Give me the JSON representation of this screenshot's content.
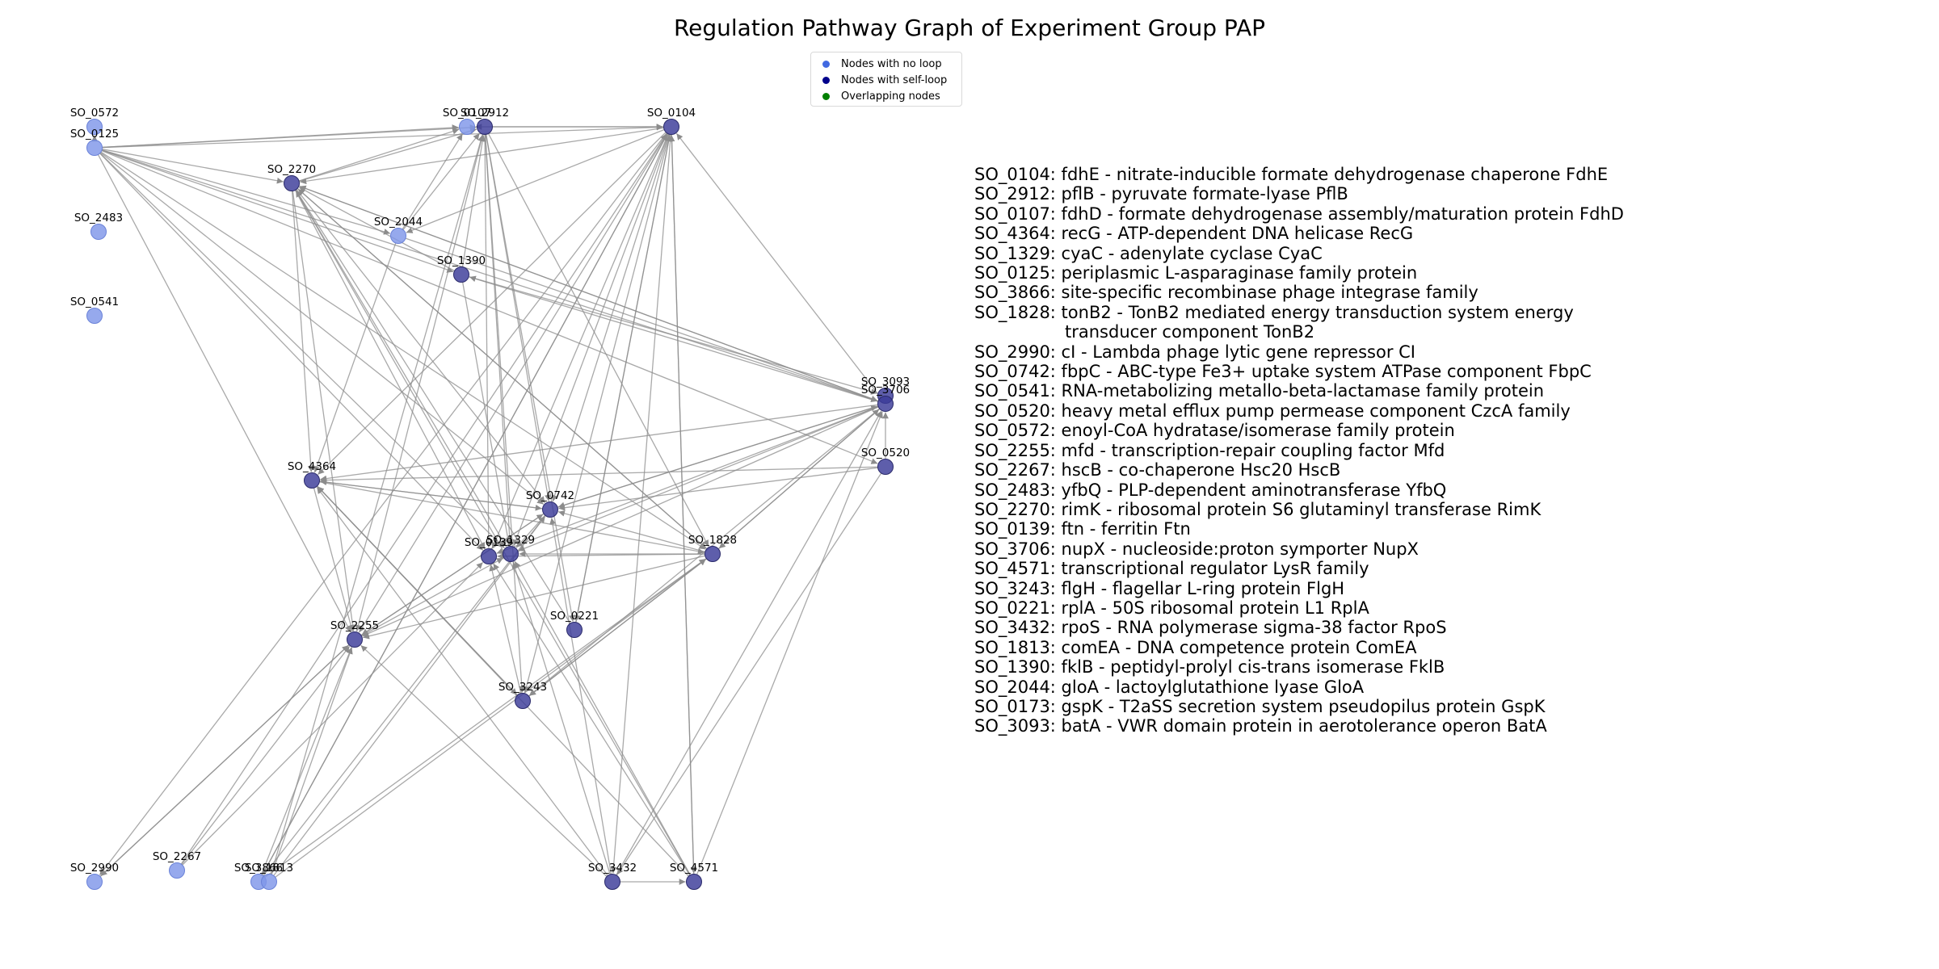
{
  "title": "Regulation Pathway Graph of Experiment Group PAP",
  "legend": [
    {
      "label": "Nodes with no loop",
      "color": "#4169e1"
    },
    {
      "label": "Nodes with self-loop",
      "color": "#00008b"
    },
    {
      "label": "Overlapping nodes",
      "color": "#008000"
    }
  ],
  "colors": {
    "no_loop": "#7f96e9",
    "self_loop": "#3a3a99",
    "edge": "#8c8c8c"
  },
  "nodes": [
    {
      "id": "SO_0572",
      "loop": false
    },
    {
      "id": "SO_0125",
      "loop": false
    },
    {
      "id": "SO_2483",
      "loop": false
    },
    {
      "id": "SO_0541",
      "loop": false
    },
    {
      "id": "SO_0107",
      "loop": false
    },
    {
      "id": "SO_2912",
      "loop": true
    },
    {
      "id": "SO_0104",
      "loop": true
    },
    {
      "id": "SO_2270",
      "loop": true
    },
    {
      "id": "SO_2044",
      "loop": false
    },
    {
      "id": "SO_1390",
      "loop": true
    },
    {
      "id": "SO_3093",
      "loop": true
    },
    {
      "id": "SO_4364",
      "loop": true
    },
    {
      "id": "SO_3706",
      "loop": true
    },
    {
      "id": "SO_0520",
      "loop": true
    },
    {
      "id": "SO_0742",
      "loop": true
    },
    {
      "id": "SO_0139",
      "loop": true
    },
    {
      "id": "SO_1329",
      "loop": true
    },
    {
      "id": "SO_1828",
      "loop": true
    },
    {
      "id": "SO_0221",
      "loop": true
    },
    {
      "id": "SO_2255",
      "loop": true
    },
    {
      "id": "SO_3243",
      "loop": true
    },
    {
      "id": "SO_2990",
      "loop": false
    },
    {
      "id": "SO_2267",
      "loop": false
    },
    {
      "id": "SO_3866",
      "loop": false
    },
    {
      "id": "SO_1813",
      "loop": false
    },
    {
      "id": "SO_3432",
      "loop": true
    },
    {
      "id": "SO_4571",
      "loop": true
    }
  ],
  "descriptions": [
    {
      "text": "SO_0104: fdhE - nitrate-inducible formate dehydrogenase chaperone FdhE"
    },
    {
      "text": "SO_2912: pflB - pyruvate formate-lyase PflB"
    },
    {
      "text": "SO_0107: fdhD - formate dehydrogenase assembly/maturation protein FdhD"
    },
    {
      "text": "SO_4364: recG - ATP-dependent DNA helicase RecG"
    },
    {
      "text": "SO_1329: cyaC - adenylate cyclase CyaC"
    },
    {
      "text": "SO_0125: periplasmic L-asparaginase family protein"
    },
    {
      "text": "SO_3866: site-specific recombinase phage integrase family"
    },
    {
      "text": "SO_1828: tonB2 - TonB2 mediated energy transduction system energy"
    },
    {
      "text": "transducer component TonB2",
      "indent": true
    },
    {
      "text": "SO_2990: cI - Lambda phage lytic gene repressor CI"
    },
    {
      "text": "SO_0742: fbpC - ABC-type Fe3+ uptake system ATPase component FbpC"
    },
    {
      "text": "SO_0541: RNA-metabolizing metallo-beta-lactamase family protein"
    },
    {
      "text": "SO_0520: heavy metal efflux pump permease component CzcA family"
    },
    {
      "text": "SO_0572: enoyl-CoA hydratase/isomerase family protein"
    },
    {
      "text": "SO_2255: mfd - transcription-repair coupling factor Mfd"
    },
    {
      "text": "SO_2267: hscB - co-chaperone Hsc20 HscB"
    },
    {
      "text": "SO_2483: yfbQ - PLP-dependent aminotransferase YfbQ"
    },
    {
      "text": "SO_2270: rimK - ribosomal protein S6 glutaminyl transferase RimK"
    },
    {
      "text": "SO_0139: ftn - ferritin Ftn"
    },
    {
      "text": "SO_3706: nupX - nucleoside:proton symporter NupX"
    },
    {
      "text": "SO_4571: transcriptional regulator LysR family"
    },
    {
      "text": "SO_3243: flgH - flagellar L-ring protein FlgH"
    },
    {
      "text": "SO_0221: rplA - 50S ribosomal protein L1 RplA"
    },
    {
      "text": "SO_3432: rpoS - RNA polymerase sigma-38 factor RpoS"
    },
    {
      "text": "SO_1813: comEA - DNA competence protein ComEA"
    },
    {
      "text": "SO_1390: fklB - peptidyl-prolyl cis-trans isomerase FklB"
    },
    {
      "text": "SO_2044: gloA - lactoylglutathione lyase GloA"
    },
    {
      "text": "SO_0173: gspK - T2aSS secretion system pseudopilus protein GspK"
    },
    {
      "text": "SO_3093: batA - VWR domain protein in aerotolerance operon BatA"
    }
  ],
  "edges": [
    [
      "SO_0125",
      "SO_0572"
    ],
    [
      "SO_0125",
      "SO_0107"
    ],
    [
      "SO_0125",
      "SO_2912"
    ],
    [
      "SO_0125",
      "SO_0104"
    ],
    [
      "SO_0125",
      "SO_2270"
    ],
    [
      "SO_0125",
      "SO_2044"
    ],
    [
      "SO_0125",
      "SO_1390"
    ],
    [
      "SO_0125",
      "SO_3706"
    ],
    [
      "SO_0125",
      "SO_0520"
    ],
    [
      "SO_0125",
      "SO_0742"
    ],
    [
      "SO_0125",
      "SO_1329"
    ],
    [
      "SO_0125",
      "SO_0139"
    ],
    [
      "SO_0125",
      "SO_1828"
    ],
    [
      "SO_0125",
      "SO_2255"
    ],
    [
      "SO_2270",
      "SO_0107"
    ],
    [
      "SO_2270",
      "SO_2912"
    ],
    [
      "SO_2270",
      "SO_4364"
    ],
    [
      "SO_2270",
      "SO_0742"
    ],
    [
      "SO_2270",
      "SO_1329"
    ],
    [
      "SO_2270",
      "SO_0139"
    ],
    [
      "SO_2270",
      "SO_1828"
    ],
    [
      "SO_2270",
      "SO_3706"
    ],
    [
      "SO_2270",
      "SO_2255"
    ],
    [
      "SO_0104",
      "SO_0107"
    ],
    [
      "SO_0104",
      "SO_2270"
    ],
    [
      "SO_0104",
      "SO_2044"
    ],
    [
      "SO_0104",
      "SO_4364"
    ],
    [
      "SO_0104",
      "SO_2255"
    ],
    [
      "SO_0104",
      "SO_0742"
    ],
    [
      "SO_0104",
      "SO_1329"
    ],
    [
      "SO_0104",
      "SO_0139"
    ],
    [
      "SO_0104",
      "SO_3243"
    ],
    [
      "SO_0104",
      "SO_0221"
    ],
    [
      "SO_0104",
      "SO_3432"
    ],
    [
      "SO_0104",
      "SO_4571"
    ],
    [
      "SO_0104",
      "SO_2990"
    ],
    [
      "SO_0104",
      "SO_3866"
    ],
    [
      "SO_2912",
      "SO_0104"
    ],
    [
      "SO_2912",
      "SO_0742"
    ],
    [
      "SO_2912",
      "SO_1329"
    ],
    [
      "SO_2912",
      "SO_0139"
    ],
    [
      "SO_2912",
      "SO_0221"
    ],
    [
      "SO_2912",
      "SO_1828"
    ],
    [
      "SO_2912",
      "SO_3243"
    ],
    [
      "SO_2912",
      "SO_2255"
    ],
    [
      "SO_2044",
      "SO_0107"
    ],
    [
      "SO_2044",
      "SO_2912"
    ],
    [
      "SO_2044",
      "SO_3706"
    ],
    [
      "SO_2044",
      "SO_4364"
    ],
    [
      "SO_1390",
      "SO_2912"
    ],
    [
      "SO_1390",
      "SO_1329"
    ],
    [
      "SO_1390",
      "SO_3093"
    ],
    [
      "SO_1390",
      "SO_2270"
    ],
    [
      "SO_3706",
      "SO_4364"
    ],
    [
      "SO_3706",
      "SO_0742"
    ],
    [
      "SO_3706",
      "SO_1329"
    ],
    [
      "SO_3706",
      "SO_0139"
    ],
    [
      "SO_3706",
      "SO_1828"
    ],
    [
      "SO_3706",
      "SO_3243"
    ],
    [
      "SO_3706",
      "SO_2255"
    ],
    [
      "SO_3706",
      "SO_0104"
    ],
    [
      "SO_3706",
      "SO_2270"
    ],
    [
      "SO_3706",
      "SO_1390"
    ],
    [
      "SO_0520",
      "SO_3706"
    ],
    [
      "SO_0520",
      "SO_0742"
    ],
    [
      "SO_0520",
      "SO_4364"
    ],
    [
      "SO_0520",
      "SO_3432"
    ],
    [
      "SO_0742",
      "SO_4364"
    ],
    [
      "SO_0742",
      "SO_1329"
    ],
    [
      "SO_0742",
      "SO_3706"
    ],
    [
      "SO_0742",
      "SO_2255"
    ],
    [
      "SO_1828",
      "SO_0742"
    ],
    [
      "SO_1828",
      "SO_1329"
    ],
    [
      "SO_1828",
      "SO_0139"
    ],
    [
      "SO_1828",
      "SO_3706"
    ],
    [
      "SO_1828",
      "SO_2255"
    ],
    [
      "SO_1828",
      "SO_3243"
    ],
    [
      "SO_1828",
      "SO_2270"
    ],
    [
      "SO_4364",
      "SO_0742"
    ],
    [
      "SO_4364",
      "SO_2255"
    ],
    [
      "SO_4364",
      "SO_3243"
    ],
    [
      "SO_4364",
      "SO_1828"
    ],
    [
      "SO_2255",
      "SO_0742"
    ],
    [
      "SO_2255",
      "SO_1329"
    ],
    [
      "SO_2255",
      "SO_2990"
    ],
    [
      "SO_3243",
      "SO_1828"
    ],
    [
      "SO_3243",
      "SO_0139"
    ],
    [
      "SO_3243",
      "SO_4364"
    ],
    [
      "SO_0221",
      "SO_2270"
    ],
    [
      "SO_0221",
      "SO_0104"
    ],
    [
      "SO_3432",
      "SO_2255"
    ],
    [
      "SO_3432",
      "SO_0742"
    ],
    [
      "SO_3432",
      "SO_4364"
    ],
    [
      "SO_3432",
      "SO_1329"
    ],
    [
      "SO_3432",
      "SO_3706"
    ],
    [
      "SO_3432",
      "SO_4571"
    ],
    [
      "SO_4571",
      "SO_0139"
    ],
    [
      "SO_4571",
      "SO_3706"
    ],
    [
      "SO_4571",
      "SO_2270"
    ],
    [
      "SO_4571",
      "SO_4364"
    ],
    [
      "SO_4571",
      "SO_1329"
    ],
    [
      "SO_4571",
      "SO_0104"
    ],
    [
      "SO_2267",
      "SO_2255"
    ],
    [
      "SO_2267",
      "SO_0104"
    ],
    [
      "SO_2267",
      "SO_0139"
    ],
    [
      "SO_3866",
      "SO_2255"
    ],
    [
      "SO_3866",
      "SO_1828"
    ],
    [
      "SO_3866",
      "SO_0104"
    ],
    [
      "SO_3866",
      "SO_0742"
    ],
    [
      "SO_1813",
      "SO_2255"
    ],
    [
      "SO_1813",
      "SO_1828"
    ],
    [
      "SO_1813",
      "SO_2912"
    ],
    [
      "SO_1813",
      "SO_0742"
    ],
    [
      "SO_2990",
      "SO_2255"
    ]
  ]
}
